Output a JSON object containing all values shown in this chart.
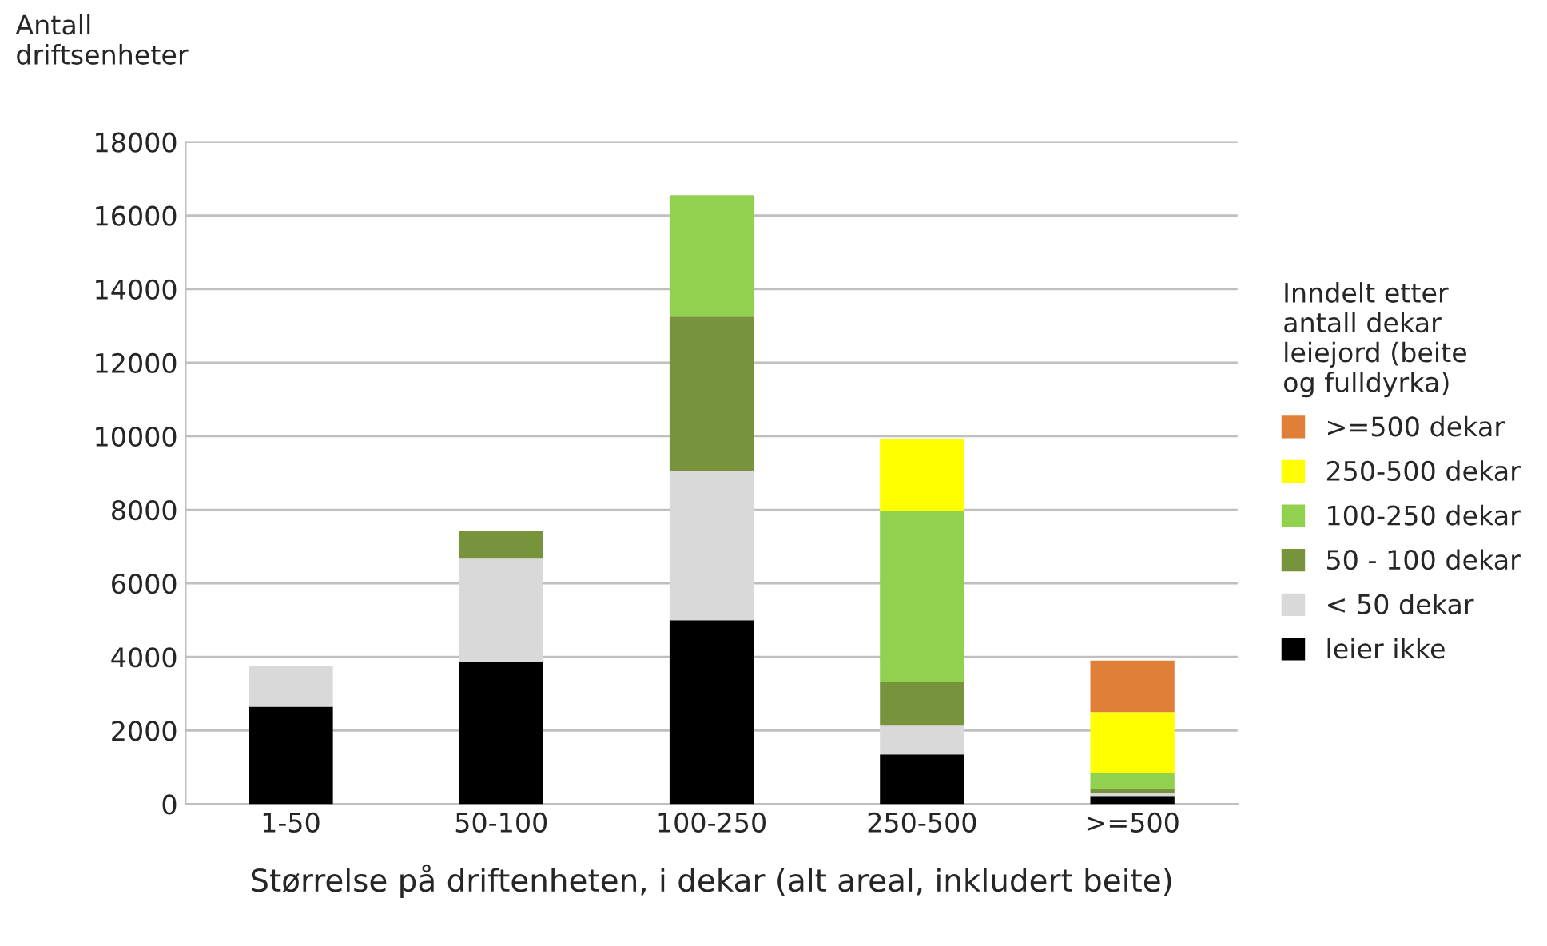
{
  "chart_data": {
    "type": "bar",
    "stacked": true,
    "xlabel": "Størrelse på driftenheten, i dekar (alt areal, inkludert beite)",
    "ylabel": "Antall\ndriftsenheter",
    "legend_title": "Inndelt etter\nantall dekar\nleiejord (beite\nog fulldyrka)",
    "categories": [
      "1-50",
      "50-100",
      "100-250",
      "250-500",
      ">=500"
    ],
    "series": [
      {
        "name": "leier ikke",
        "color": "#000000",
        "values": [
          2650,
          3870,
          5000,
          1350,
          220
        ]
      },
      {
        "name": "< 50 dekar",
        "color": "#d9d9d9",
        "values": [
          1100,
          2800,
          4050,
          780,
          80
        ]
      },
      {
        "name": "50 - 100 dekar",
        "color": "#77933c",
        "values": [
          0,
          750,
          4200,
          1200,
          100
        ]
      },
      {
        "name": "100-250 dekar",
        "color": "#92d050",
        "values": [
          0,
          0,
          3300,
          4650,
          450
        ]
      },
      {
        "name": "250-500 dekar",
        "color": "#ffff00",
        "values": [
          0,
          0,
          0,
          1950,
          1650
        ]
      },
      {
        "name": ">=500 dekar",
        "color": "#e07f38",
        "values": [
          0,
          0,
          0,
          0,
          1400
        ]
      }
    ],
    "ylim": [
      0,
      18000
    ],
    "yticks": [
      0,
      2000,
      4000,
      6000,
      8000,
      10000,
      12000,
      14000,
      16000,
      18000
    ],
    "grid": "y",
    "legend": "right"
  }
}
